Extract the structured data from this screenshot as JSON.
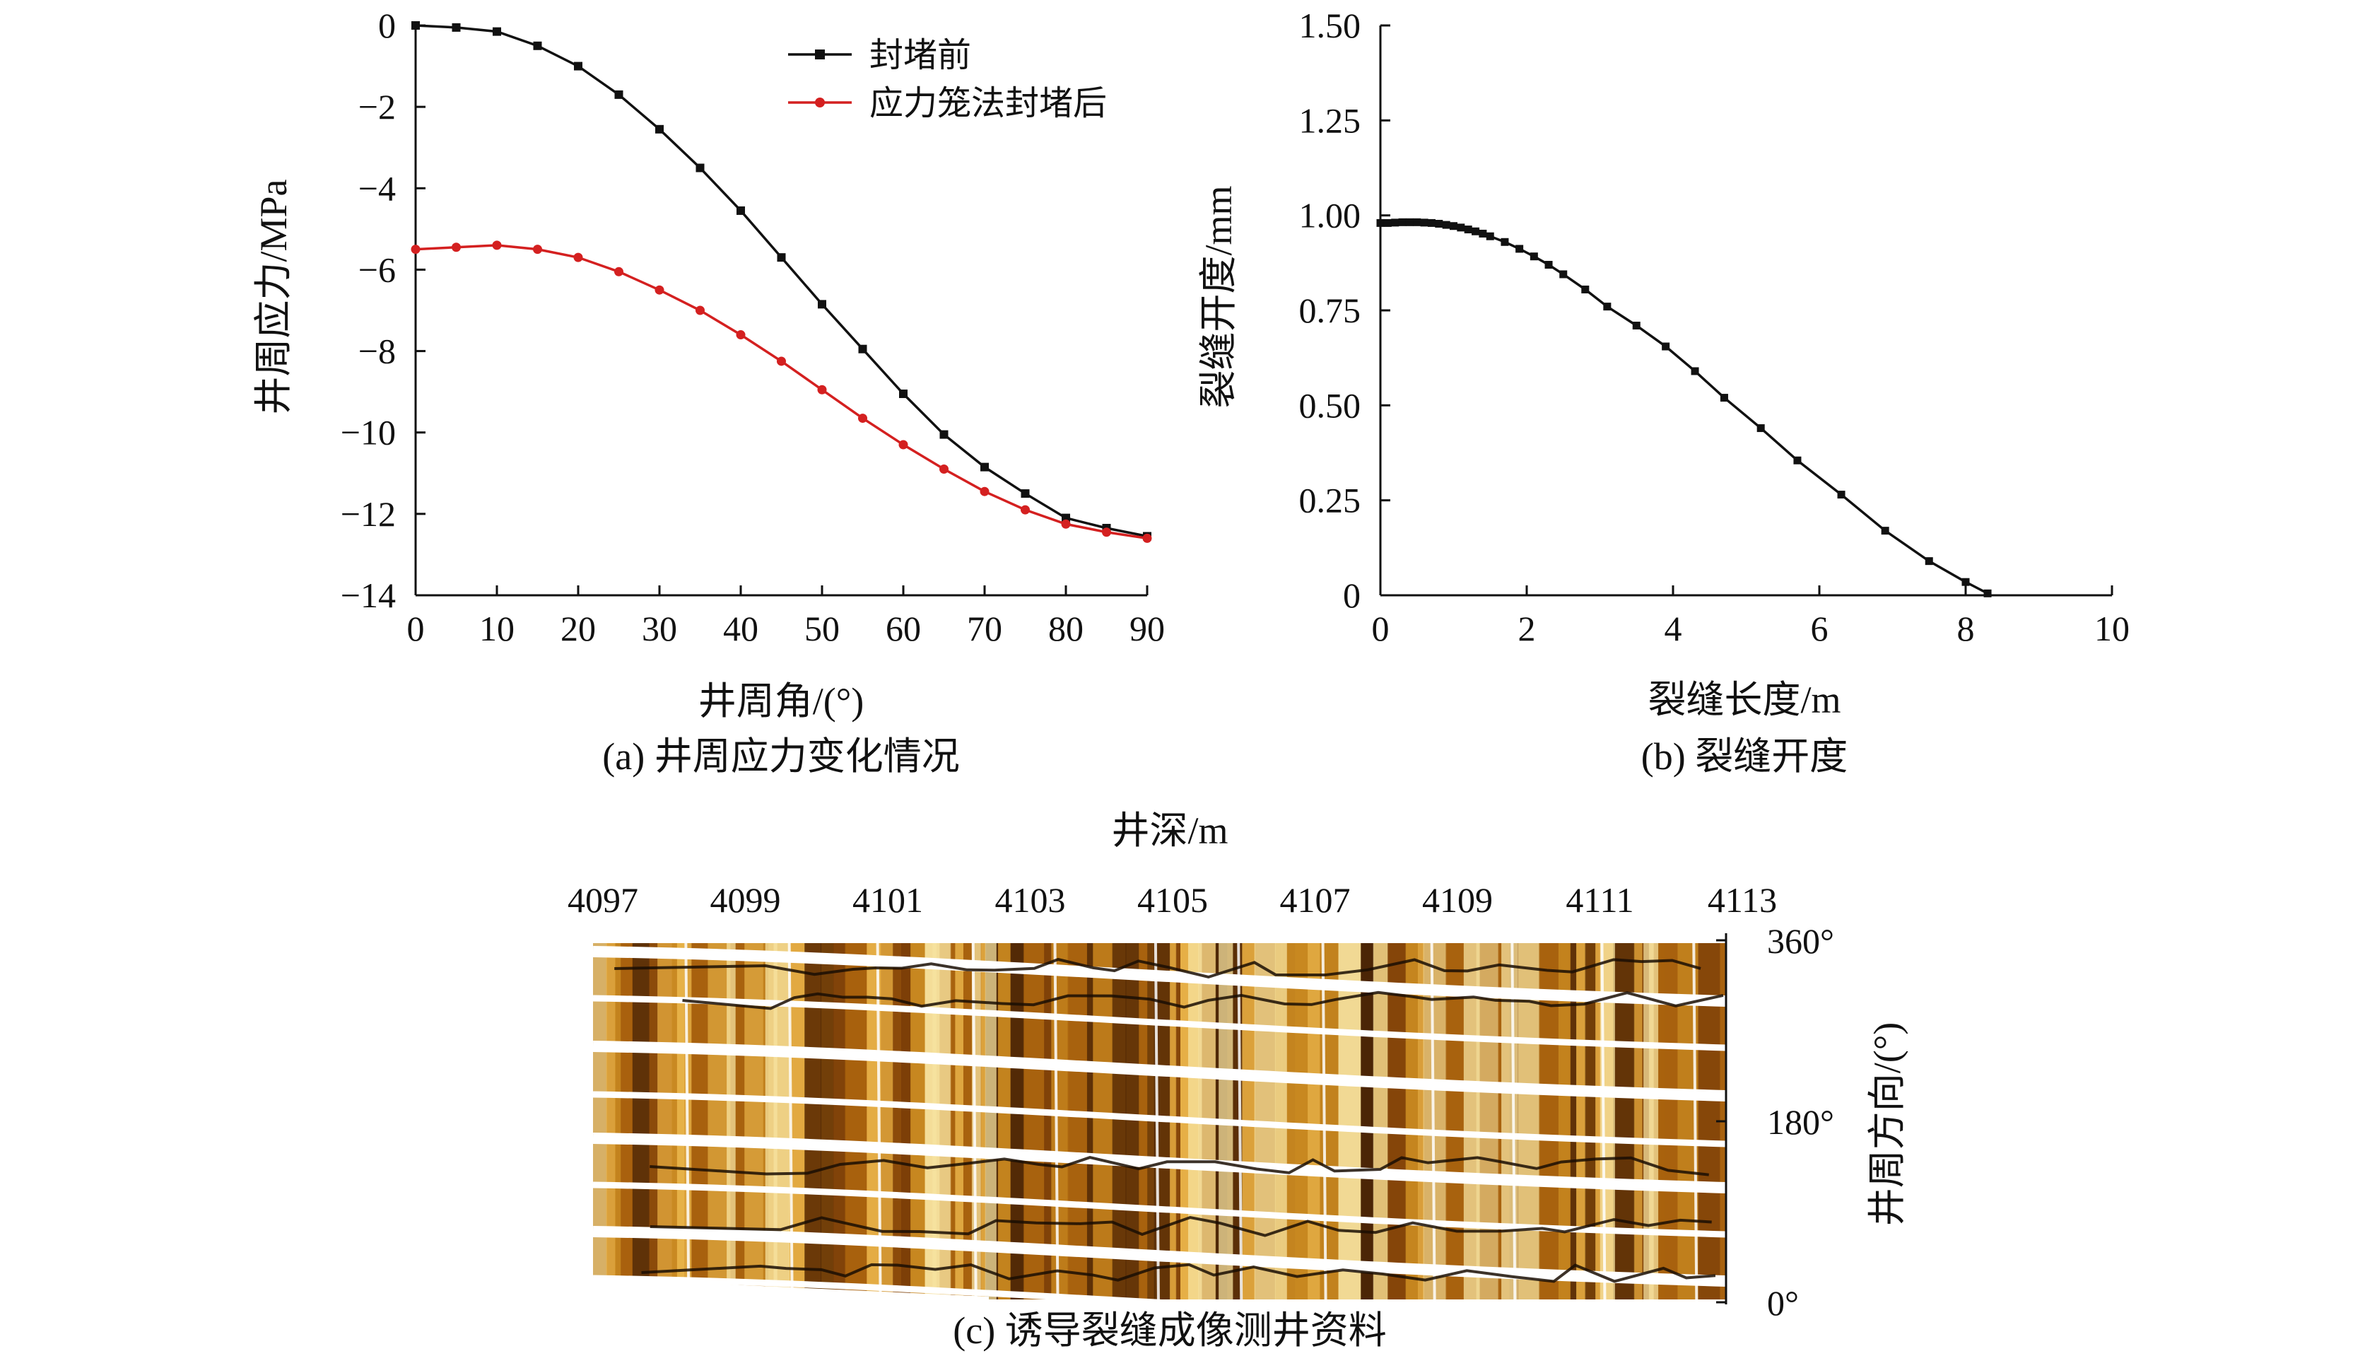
{
  "colors": {
    "before": "#111111",
    "after": "#d42020",
    "axis": "#111111"
  },
  "panel_a": {
    "caption": "(a) 井周应力变化情况",
    "chart_data": {
      "type": "line",
      "xlabel": "井周角/(°)",
      "ylabel": "井周应力/MPa",
      "xlim": [
        0,
        90
      ],
      "ylim": [
        -14,
        0
      ],
      "xticks": [
        "0",
        "10",
        "20",
        "30",
        "40",
        "50",
        "60",
        "70",
        "80",
        "90"
      ],
      "yticks": [
        "0",
        "−2",
        "−4",
        "−6",
        "−8",
        "−10",
        "−12",
        "−14"
      ],
      "legend_position": "top-center",
      "x": [
        0,
        5,
        10,
        15,
        20,
        25,
        30,
        35,
        40,
        45,
        50,
        55,
        60,
        65,
        70,
        75,
        80,
        85,
        90
      ],
      "series": [
        {
          "name": "封堵前",
          "values": [
            0,
            -0.05,
            -0.15,
            -0.5,
            -1.0,
            -1.7,
            -2.55,
            -3.5,
            -4.55,
            -5.7,
            -6.85,
            -7.95,
            -9.05,
            -10.05,
            -10.85,
            -11.5,
            -12.1,
            -12.35,
            -12.55
          ]
        },
        {
          "name": "应力笼法封堵后",
          "values": [
            -5.5,
            -5.45,
            -5.4,
            -5.5,
            -5.7,
            -6.05,
            -6.5,
            -7.0,
            -7.6,
            -8.25,
            -8.95,
            -9.65,
            -10.3,
            -10.9,
            -11.45,
            -11.9,
            -12.25,
            -12.45,
            -12.6
          ]
        }
      ]
    }
  },
  "panel_b": {
    "caption": "(b) 裂缝开度",
    "chart_data": {
      "type": "line",
      "xlabel": "裂缝长度/m",
      "ylabel": "裂缝开度/mm",
      "xlim": [
        0,
        10
      ],
      "ylim": [
        0,
        1.5
      ],
      "xticks": [
        "0",
        "2",
        "4",
        "6",
        "8",
        "10"
      ],
      "yticks": [
        "0",
        "0.25",
        "0.50",
        "0.75",
        "1.00",
        "1.25",
        "1.50"
      ],
      "x": [
        0,
        0.1,
        0.2,
        0.3,
        0.4,
        0.5,
        0.6,
        0.7,
        0.8,
        0.9,
        1.0,
        1.1,
        1.2,
        1.3,
        1.4,
        1.5,
        1.7,
        1.9,
        2.1,
        2.3,
        2.5,
        2.8,
        3.1,
        3.5,
        3.9,
        4.3,
        4.7,
        5.2,
        5.7,
        6.3,
        6.9,
        7.5,
        8.0,
        8.3
      ],
      "series": [
        {
          "name": "",
          "values": [
            0.98,
            0.98,
            0.981,
            0.982,
            0.982,
            0.982,
            0.981,
            0.98,
            0.978,
            0.975,
            0.972,
            0.968,
            0.963,
            0.958,
            0.952,
            0.945,
            0.93,
            0.912,
            0.892,
            0.87,
            0.845,
            0.805,
            0.76,
            0.71,
            0.655,
            0.59,
            0.52,
            0.44,
            0.355,
            0.265,
            0.17,
            0.09,
            0.035,
            0.005
          ]
        }
      ]
    }
  },
  "panel_c": {
    "caption": "(c) 诱导裂缝成像测井资料",
    "top_axis_label": "井深/m",
    "depth_ticks": [
      "4097",
      "4099",
      "4101",
      "4103",
      "4105",
      "4107",
      "4109",
      "4111",
      "4113"
    ],
    "right_axis_label": "井周方向/(°)",
    "azimuth_ticks": [
      "360°",
      "180°",
      "0°"
    ],
    "image_palette": {
      "dark": "#4a2406",
      "mid": "#a8620e",
      "light": "#e8b248",
      "bright": "#f7e3a0",
      "crack": "#1a0e04"
    }
  }
}
